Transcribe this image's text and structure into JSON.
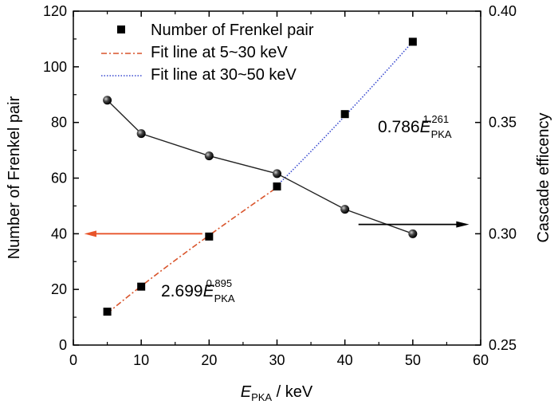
{
  "chart_data": {
    "type": "scatter",
    "x_axis": {
      "label_main": "E",
      "label_sub": "PKA",
      "label_tail": " / keV",
      "range": [
        0,
        60
      ],
      "ticks": [
        "0",
        "10",
        "20",
        "30",
        "40",
        "50",
        "60"
      ]
    },
    "y_axis_left": {
      "label": "Number of Frenkel pair",
      "range": [
        0,
        120
      ],
      "ticks": [
        "0",
        "20",
        "40",
        "60",
        "80",
        "100",
        "120"
      ]
    },
    "y_axis_right": {
      "label": "Cascade efficency",
      "range": [
        0.25,
        0.4
      ],
      "ticks": [
        "0.25",
        "0.30",
        "0.35",
        "0.40"
      ]
    },
    "series": [
      {
        "name": "Number of Frenkel pair",
        "axis": "left",
        "marker": "square",
        "color": "#000000",
        "x": [
          5,
          10,
          20,
          30,
          40,
          50
        ],
        "y": [
          12,
          21,
          39,
          57,
          83,
          109
        ]
      },
      {
        "axis": "right",
        "marker": "sphere",
        "color": "#222222",
        "line": true,
        "x": [
          5,
          10,
          20,
          30,
          40,
          50
        ],
        "y": [
          0.36,
          0.345,
          0.335,
          0.327,
          0.311,
          0.3
        ]
      }
    ],
    "fits": [
      {
        "name": "Fit line at 5~30 keV",
        "color": "#d9542b",
        "style": "dash-dot",
        "coef": 2.699,
        "exp": 0.895,
        "x_range": [
          5,
          30
        ],
        "annotation_coef": "2.699",
        "annotation_var": "E",
        "annotation_sub": "PKA",
        "annotation_sup": "0.895"
      },
      {
        "name": "Fit line at 30~50 keV",
        "color": "#3a4bd0",
        "style": "dotted",
        "coef": 0.786,
        "exp": 1.261,
        "x_range": [
          30,
          50
        ],
        "annotation_coef": "0.786",
        "annotation_var": "E",
        "annotation_sub": "PKA",
        "annotation_sup": "1.261"
      }
    ],
    "indicator_arrows": [
      {
        "points_to": "left-axis",
        "color": "#e8542a"
      },
      {
        "points_to": "right-axis",
        "color": "#000000"
      }
    ],
    "legend_placement": "top-center",
    "grid": false
  }
}
